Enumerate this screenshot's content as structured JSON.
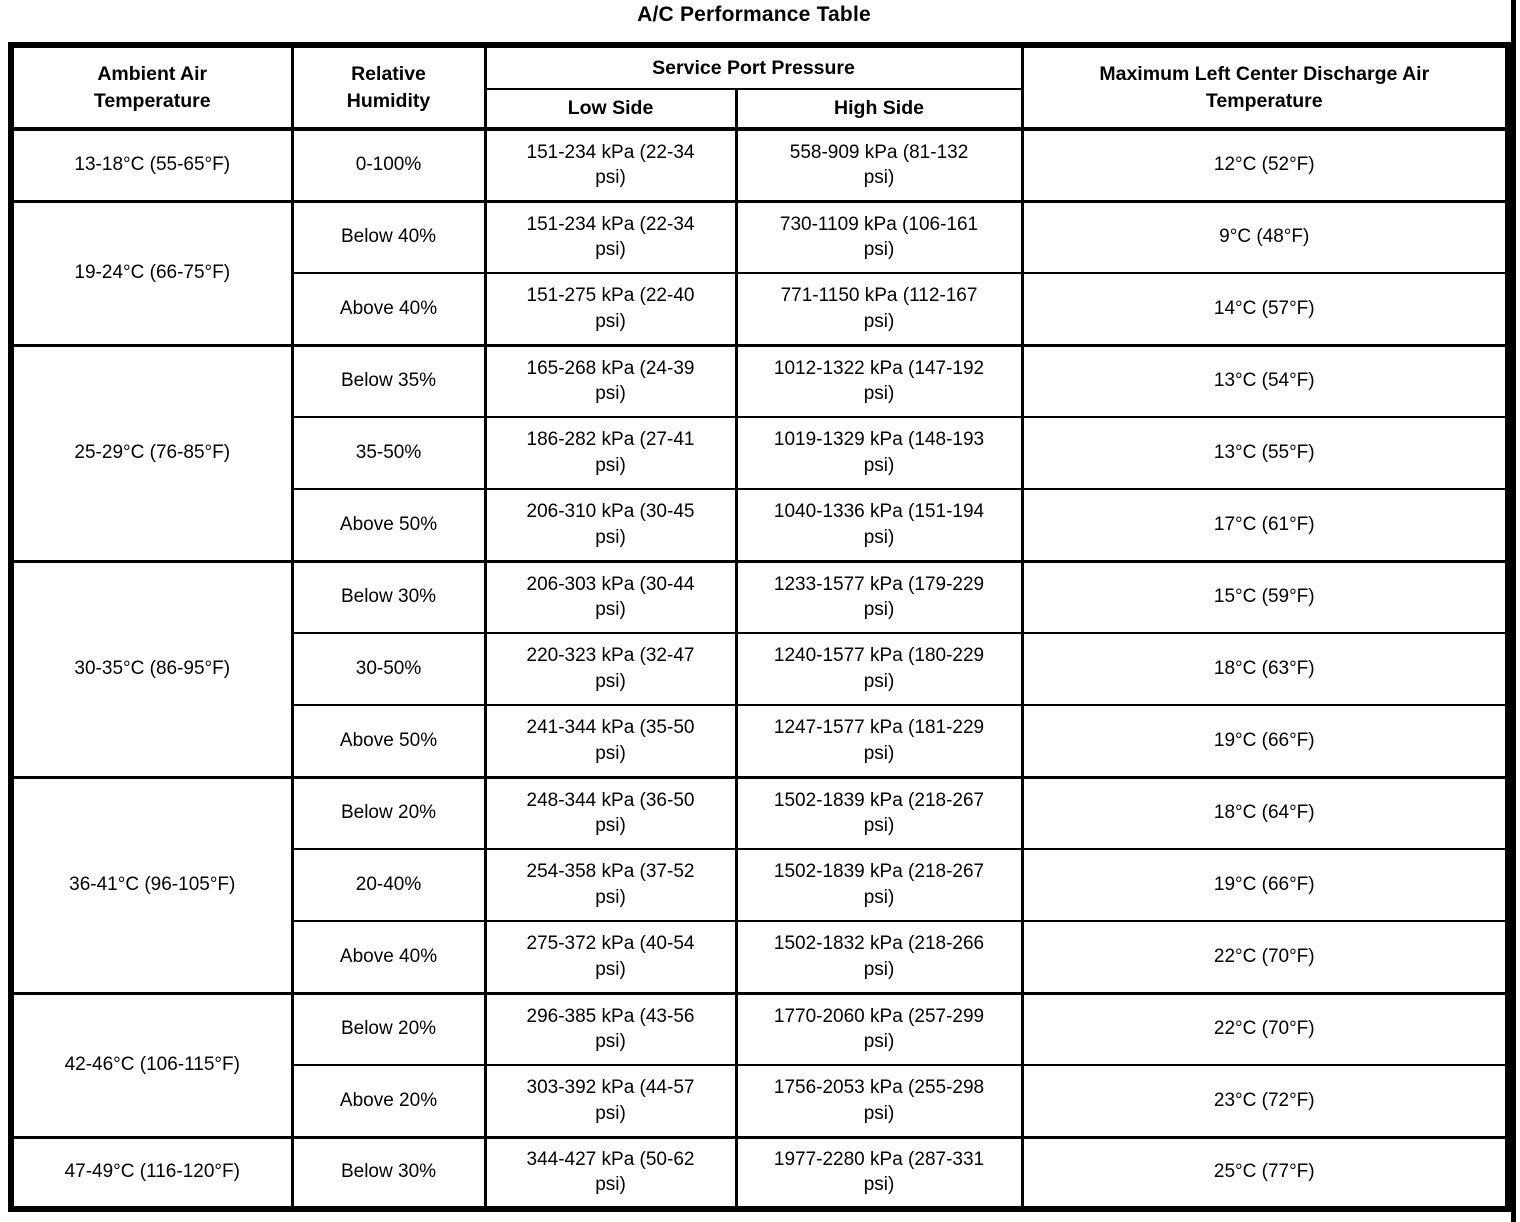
{
  "title": "A/C Performance Table",
  "table": {
    "headers": {
      "ambient": "Ambient Air\nTemperature",
      "humidity": "Relative\nHumidity",
      "pressure_group": "Service Port Pressure",
      "low_side": "Low Side",
      "high_side": "High Side",
      "discharge": "Maximum Left Center Discharge Air\nTemperature"
    },
    "groups": [
      {
        "ambient": "13-18°C (55-65°F)",
        "rows": [
          {
            "humidity": "0-100%",
            "low": "151-234 kPa (22-34\npsi)",
            "high": "558-909 kPa (81-132\npsi)",
            "discharge": "12°C (52°F)"
          }
        ]
      },
      {
        "ambient": "19-24°C (66-75°F)",
        "rows": [
          {
            "humidity": "Below 40%",
            "low": "151-234 kPa (22-34\npsi)",
            "high": "730-1109 kPa (106-161\npsi)",
            "discharge": "9°C (48°F)"
          },
          {
            "humidity": "Above 40%",
            "low": "151-275 kPa (22-40\npsi)",
            "high": "771-1150 kPa (112-167\npsi)",
            "discharge": "14°C (57°F)"
          }
        ]
      },
      {
        "ambient": "25-29°C (76-85°F)",
        "rows": [
          {
            "humidity": "Below 35%",
            "low": "165-268 kPa (24-39\npsi)",
            "high": "1012-1322 kPa (147-192\npsi)",
            "discharge": "13°C (54°F)"
          },
          {
            "humidity": "35-50%",
            "low": "186-282 kPa (27-41\npsi)",
            "high": "1019-1329 kPa (148-193\npsi)",
            "discharge": "13°C (55°F)"
          },
          {
            "humidity": "Above 50%",
            "low": "206-310 kPa (30-45\npsi)",
            "high": "1040-1336 kPa (151-194\npsi)",
            "discharge": "17°C (61°F)"
          }
        ]
      },
      {
        "ambient": "30-35°C (86-95°F)",
        "rows": [
          {
            "humidity": "Below 30%",
            "low": "206-303 kPa (30-44\npsi)",
            "high": "1233-1577 kPa (179-229\npsi)",
            "discharge": "15°C (59°F)"
          },
          {
            "humidity": "30-50%",
            "low": "220-323 kPa (32-47\npsi)",
            "high": "1240-1577 kPa (180-229\npsi)",
            "discharge": "18°C (63°F)"
          },
          {
            "humidity": "Above 50%",
            "low": "241-344 kPa (35-50\npsi)",
            "high": "1247-1577 kPa (181-229\npsi)",
            "discharge": "19°C (66°F)"
          }
        ]
      },
      {
        "ambient": "36-41°C (96-105°F)",
        "rows": [
          {
            "humidity": "Below 20%",
            "low": "248-344 kPa (36-50\npsi)",
            "high": "1502-1839 kPa (218-267\npsi)",
            "discharge": "18°C (64°F)"
          },
          {
            "humidity": "20-40%",
            "low": "254-358 kPa (37-52\npsi)",
            "high": "1502-1839 kPa (218-267\npsi)",
            "discharge": "19°C (66°F)"
          },
          {
            "humidity": "Above 40%",
            "low": "275-372 kPa (40-54\npsi)",
            "high": "1502-1832 kPa (218-266\npsi)",
            "discharge": "22°C (70°F)"
          }
        ]
      },
      {
        "ambient": "42-46°C (106-115°F)",
        "rows": [
          {
            "humidity": "Below 20%",
            "low": "296-385 kPa (43-56\npsi)",
            "high": "1770-2060 kPa (257-299\npsi)",
            "discharge": "22°C (70°F)"
          },
          {
            "humidity": "Above 20%",
            "low": "303-392 kPa (44-57\npsi)",
            "high": "1756-2053 kPa (255-298\npsi)",
            "discharge": "23°C (72°F)"
          }
        ]
      },
      {
        "ambient": "47-49°C (116-120°F)",
        "rows": [
          {
            "humidity": "Below 30%",
            "low": "344-427 kPa (50-62\npsi)",
            "high": "1977-2280 kPa (287-331\npsi)",
            "discharge": "25°C (77°F)"
          }
        ]
      }
    ]
  }
}
